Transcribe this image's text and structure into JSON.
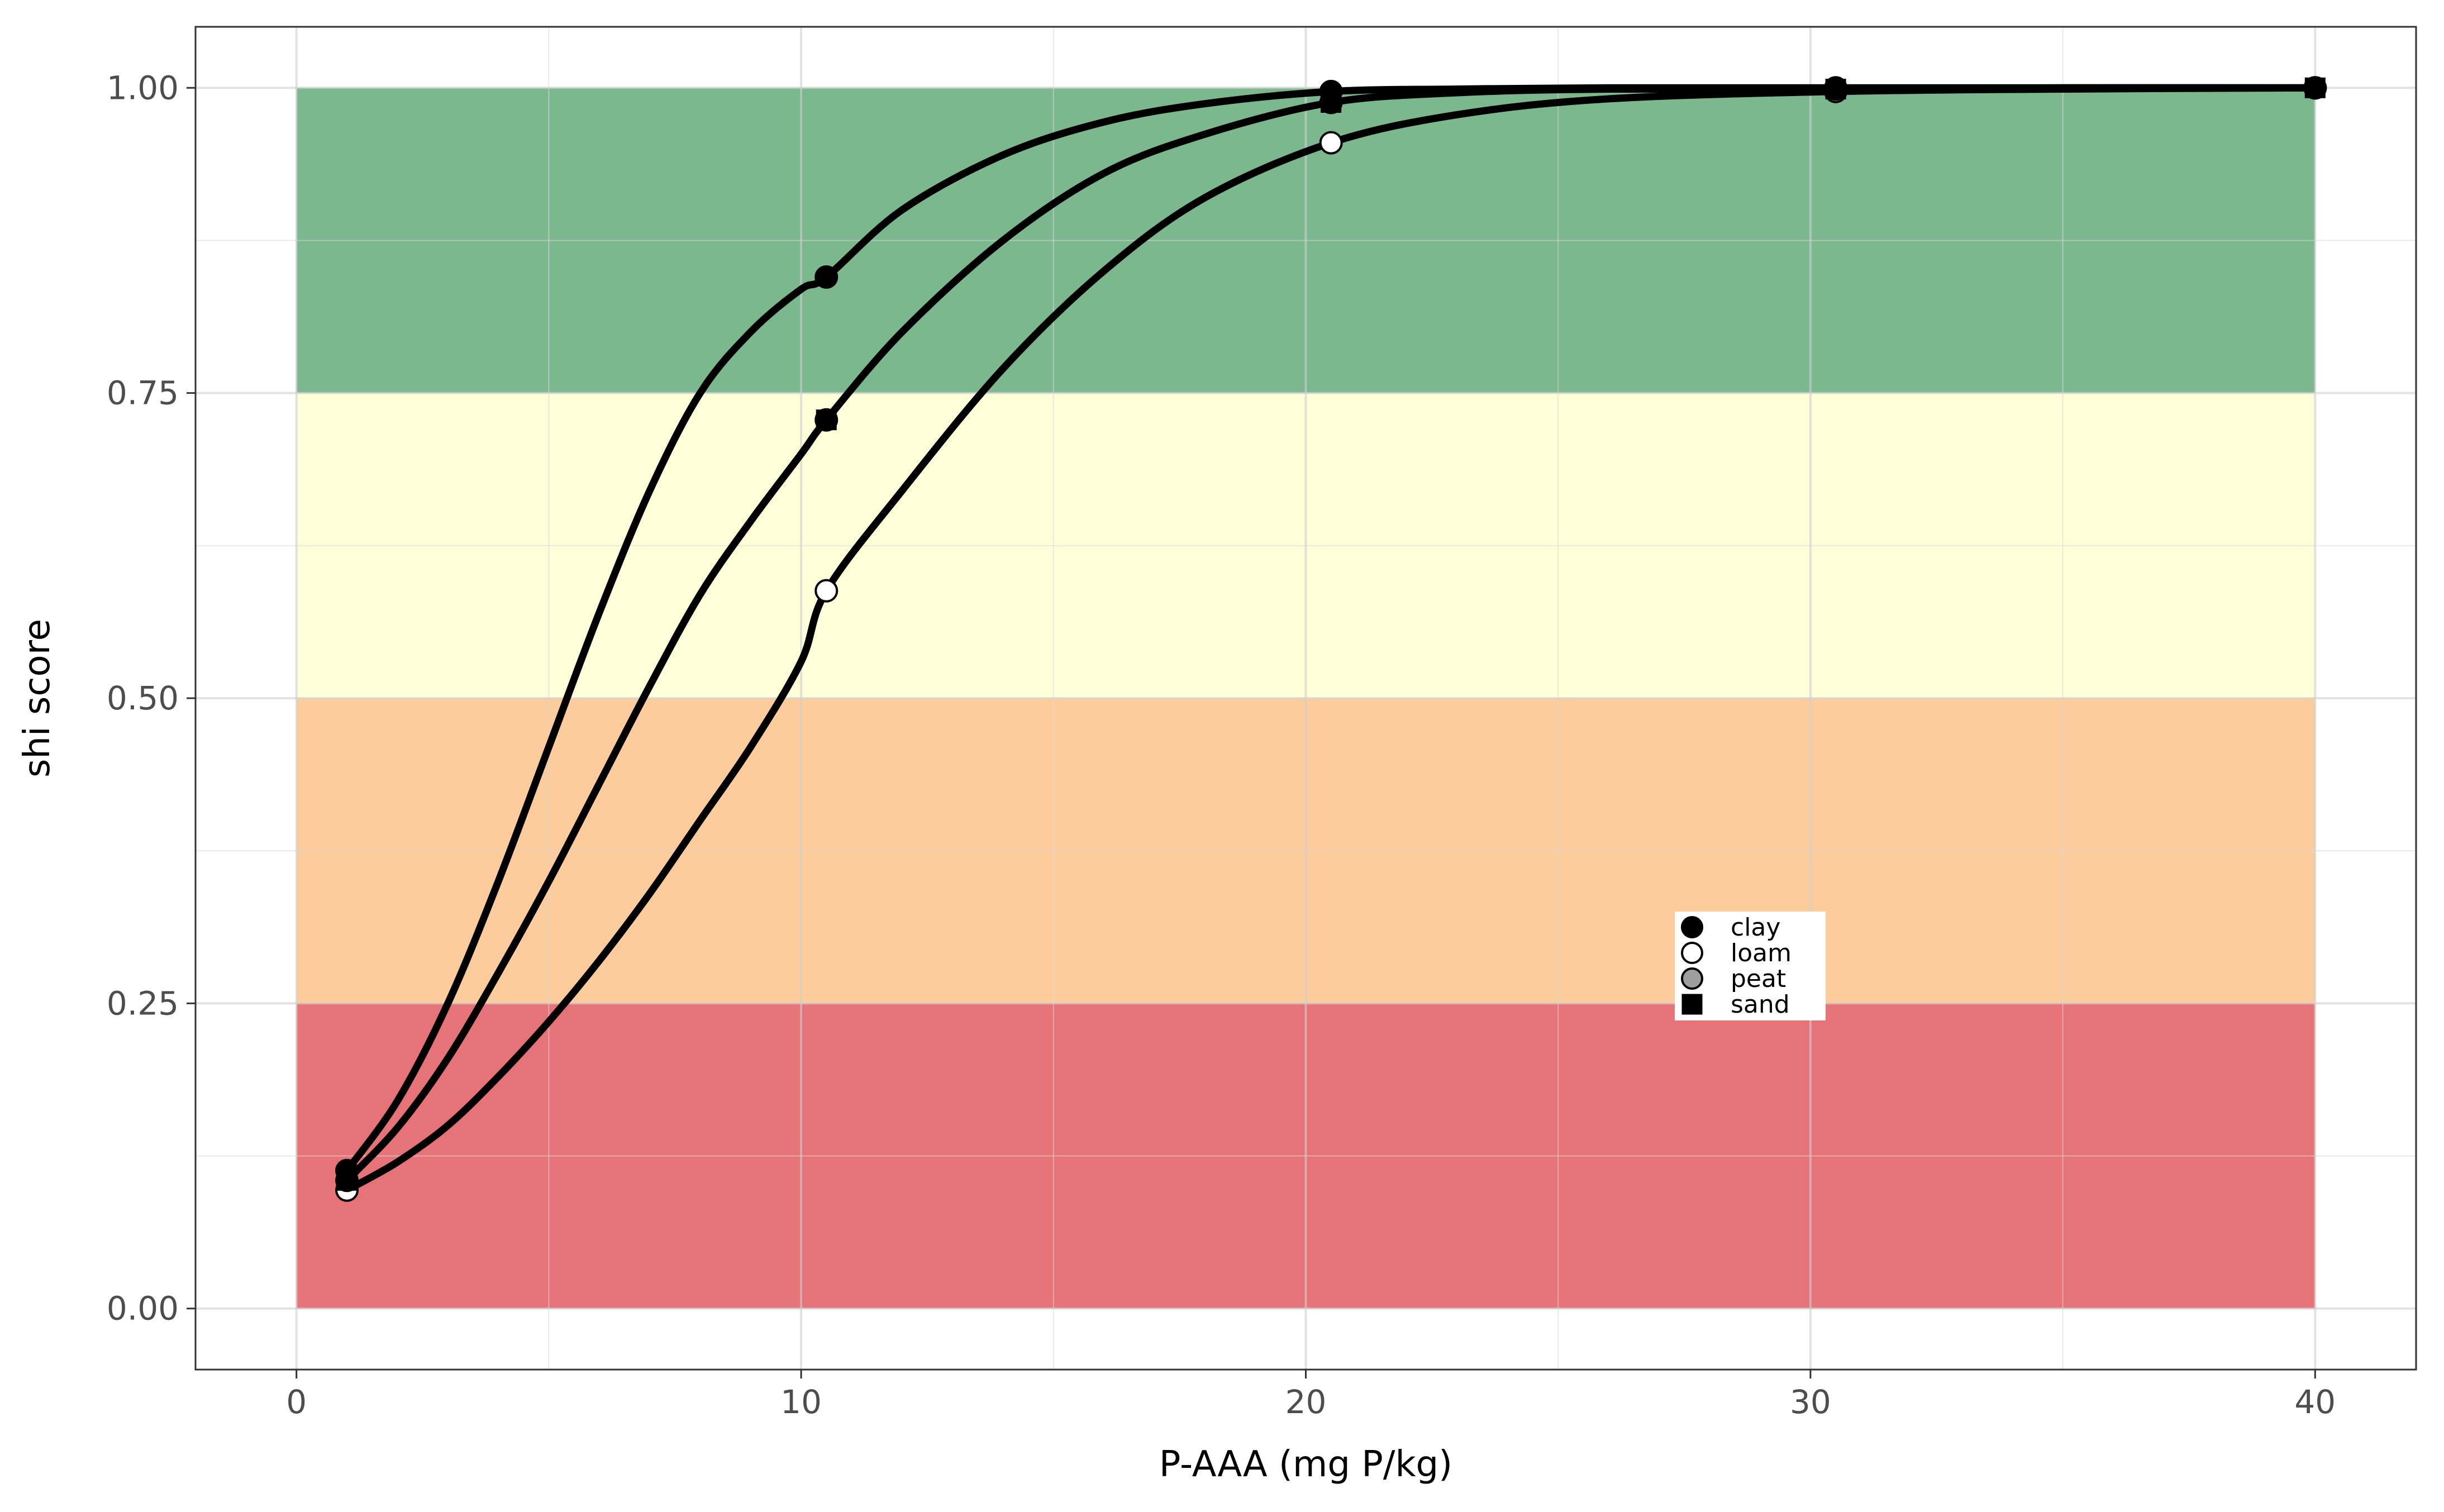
{
  "chart_data": {
    "type": "line",
    "title": "",
    "xlabel": "P-AAA (mg P/kg)",
    "ylabel": "shi score",
    "xlim": [
      -2,
      42
    ],
    "ylim": [
      -0.05,
      1.05
    ],
    "x_ticks": [
      0,
      10,
      20,
      30,
      40
    ],
    "x_tick_labels": [
      "0",
      "10",
      "20",
      "30",
      "40"
    ],
    "y_ticks": [
      0,
      0.25,
      0.5,
      0.75,
      1.0
    ],
    "y_tick_labels": [
      "0.00",
      "0.25",
      "0.50",
      "0.75",
      "1.00"
    ],
    "grid": true,
    "bands": [
      {
        "y_from": 0.75,
        "y_to": 1.0,
        "x_from": 0,
        "x_to": 40,
        "color": "#7bb88e"
      },
      {
        "y_from": 0.5,
        "y_to": 0.75,
        "x_from": 0,
        "x_to": 40,
        "color": "#fefed9"
      },
      {
        "y_from": 0.25,
        "y_to": 0.5,
        "x_from": 0,
        "x_to": 40,
        "color": "#fccc9d"
      },
      {
        "y_from": 0.0,
        "y_to": 0.25,
        "x_from": 0,
        "x_to": 40,
        "color": "#e67377"
      }
    ],
    "legend": {
      "placement": "inside-lower-right",
      "entries": [
        {
          "label": "clay",
          "marker": "circle",
          "fill": "#000000"
        },
        {
          "label": "loam",
          "marker": "circle",
          "fill": "#ffffff"
        },
        {
          "label": "peat",
          "marker": "circle",
          "fill": "#9e9e9e"
        },
        {
          "label": "sand",
          "marker": "square",
          "fill": "#000000"
        }
      ]
    },
    "series": [
      {
        "name": "clay",
        "marker": "circle",
        "fill": "#000000",
        "x": [
          1,
          10.5,
          20.5,
          30.5,
          40
        ],
        "y": [
          0.113,
          0.845,
          0.997,
          1.0,
          1.0
        ]
      },
      {
        "name": "loam",
        "marker": "circle",
        "fill": "#ffffff",
        "x": [
          1,
          10.5,
          20.5,
          30.5,
          40
        ],
        "y": [
          0.097,
          0.588,
          0.955,
          0.997,
          1.0
        ]
      },
      {
        "name": "peat",
        "marker": "circle",
        "fill": "#9e9e9e",
        "x": [
          1,
          10.5,
          20.5,
          30.5,
          40
        ],
        "y": [
          0.105,
          0.728,
          0.988,
          0.999,
          1.0
        ]
      },
      {
        "name": "sand",
        "marker": "square",
        "fill": "#000000",
        "x": [
          1,
          10.5,
          20.5,
          30.5,
          40
        ],
        "y": [
          0.105,
          0.728,
          0.988,
          0.999,
          1.0
        ]
      }
    ],
    "curves": [
      {
        "x": [
          1,
          2,
          3,
          4,
          5,
          6,
          7,
          8,
          9,
          10,
          10.5,
          12,
          14,
          16,
          18,
          20.5,
          23,
          26,
          30.5,
          35,
          40
        ],
        "y": [
          0.113,
          0.17,
          0.25,
          0.35,
          0.46,
          0.57,
          0.67,
          0.75,
          0.8,
          0.835,
          0.845,
          0.9,
          0.945,
          0.972,
          0.987,
          0.997,
          0.999,
          1.0,
          1.0,
          1.0,
          1.0
        ]
      },
      {
        "x": [
          1,
          2,
          3,
          4,
          5,
          6,
          7,
          8,
          9,
          10,
          10.5,
          12,
          14,
          16,
          18,
          20.5,
          23,
          26,
          30.5,
          35,
          40
        ],
        "y": [
          0.105,
          0.148,
          0.205,
          0.275,
          0.35,
          0.43,
          0.51,
          0.585,
          0.645,
          0.7,
          0.728,
          0.8,
          0.875,
          0.93,
          0.962,
          0.988,
          0.996,
          0.999,
          0.999,
          1.0,
          1.0
        ]
      },
      {
        "x": [
          1,
          2,
          3,
          4,
          5,
          6,
          7,
          8,
          9,
          10,
          10.5,
          12,
          14,
          16,
          18,
          20.5,
          23,
          26,
          30.5,
          35,
          40
        ],
        "y": [
          0.097,
          0.12,
          0.15,
          0.19,
          0.235,
          0.285,
          0.34,
          0.4,
          0.46,
          0.53,
          0.588,
          0.67,
          0.77,
          0.85,
          0.91,
          0.955,
          0.978,
          0.991,
          0.997,
          0.999,
          1.0
        ]
      }
    ]
  }
}
